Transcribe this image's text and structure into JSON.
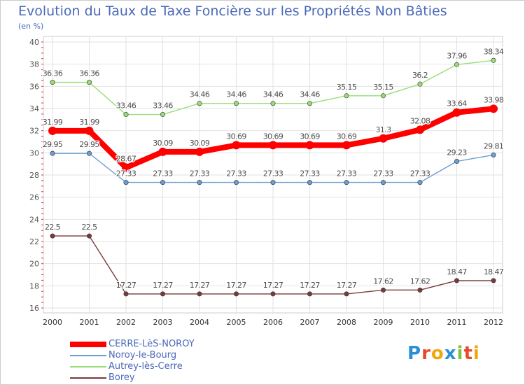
{
  "chart_data": {
    "type": "line",
    "title": "Evolution du Taux de Taxe Foncière sur les Propriétés Non Bâties",
    "unit": "(en %)",
    "xlabel": "",
    "ylabel": "(en %)",
    "ylim": [
      16,
      40
    ],
    "yticks": [
      16,
      18,
      20,
      22,
      24,
      26,
      28,
      30,
      32,
      34,
      36,
      38,
      40
    ],
    "categories": [
      "2000",
      "2001",
      "2002",
      "2003",
      "2004",
      "2005",
      "2006",
      "2007",
      "2008",
      "2009",
      "2010",
      "2011",
      "2012"
    ],
    "series": [
      {
        "name": "CERRE-LèS-NOROY",
        "color": "#ff0000",
        "values": [
          31.99,
          31.99,
          28.67,
          30.09,
          30.09,
          30.69,
          30.69,
          30.69,
          30.69,
          31.3,
          32.08,
          33.64,
          33.98
        ],
        "labels": [
          "31.99",
          "31.99",
          "28.67",
          "30.09",
          "30.09",
          "30.69",
          "30.69",
          "30.69",
          "30.69",
          "31.3",
          "32.08",
          "33.64",
          "33.98"
        ]
      },
      {
        "name": "Noroy-le-Bourg",
        "color": "#6a9fd0",
        "values": [
          29.95,
          29.95,
          27.33,
          27.33,
          27.33,
          27.33,
          27.33,
          27.33,
          27.33,
          27.33,
          27.33,
          29.23,
          29.81
        ],
        "labels": [
          "29.95",
          "29.95",
          "27.33",
          "27.33",
          "27.33",
          "27.33",
          "27.33",
          "27.33",
          "27.33",
          "27.33",
          "27.33",
          "29.23",
          "29.81"
        ]
      },
      {
        "name": "Autrey-lès-Cerre",
        "color": "#99dd77",
        "values": [
          36.36,
          36.36,
          33.46,
          33.46,
          34.46,
          34.46,
          34.46,
          34.46,
          35.15,
          35.15,
          36.2,
          37.96,
          38.34
        ],
        "labels": [
          "36.36",
          "36.36",
          "33.46",
          "33.46",
          "34.46",
          "34.46",
          "34.46",
          "34.46",
          "35.15",
          "35.15",
          "36.2",
          "37.96",
          "38.34"
        ]
      },
      {
        "name": "Borey",
        "color": "#7a3a3a",
        "values": [
          22.5,
          22.5,
          17.27,
          17.27,
          17.27,
          17.27,
          17.27,
          17.27,
          17.27,
          17.62,
          17.62,
          18.47,
          18.47
        ],
        "labels": [
          "22.5",
          "22.5",
          "17.27",
          "17.27",
          "17.27",
          "17.27",
          "17.27",
          "17.27",
          "17.27",
          "17.62",
          "17.62",
          "18.47",
          "18.47"
        ]
      }
    ],
    "grid": true,
    "legend_position": "bottom-left"
  },
  "brand": {
    "letters": [
      "P",
      "r",
      "o",
      "x",
      "i",
      "t",
      "i"
    ],
    "colors": [
      "#2a8fd6",
      "#e7492a",
      "#f3a60c",
      "#2a8fd6",
      "#7cc242",
      "#e7492a",
      "#f3a60c"
    ]
  }
}
